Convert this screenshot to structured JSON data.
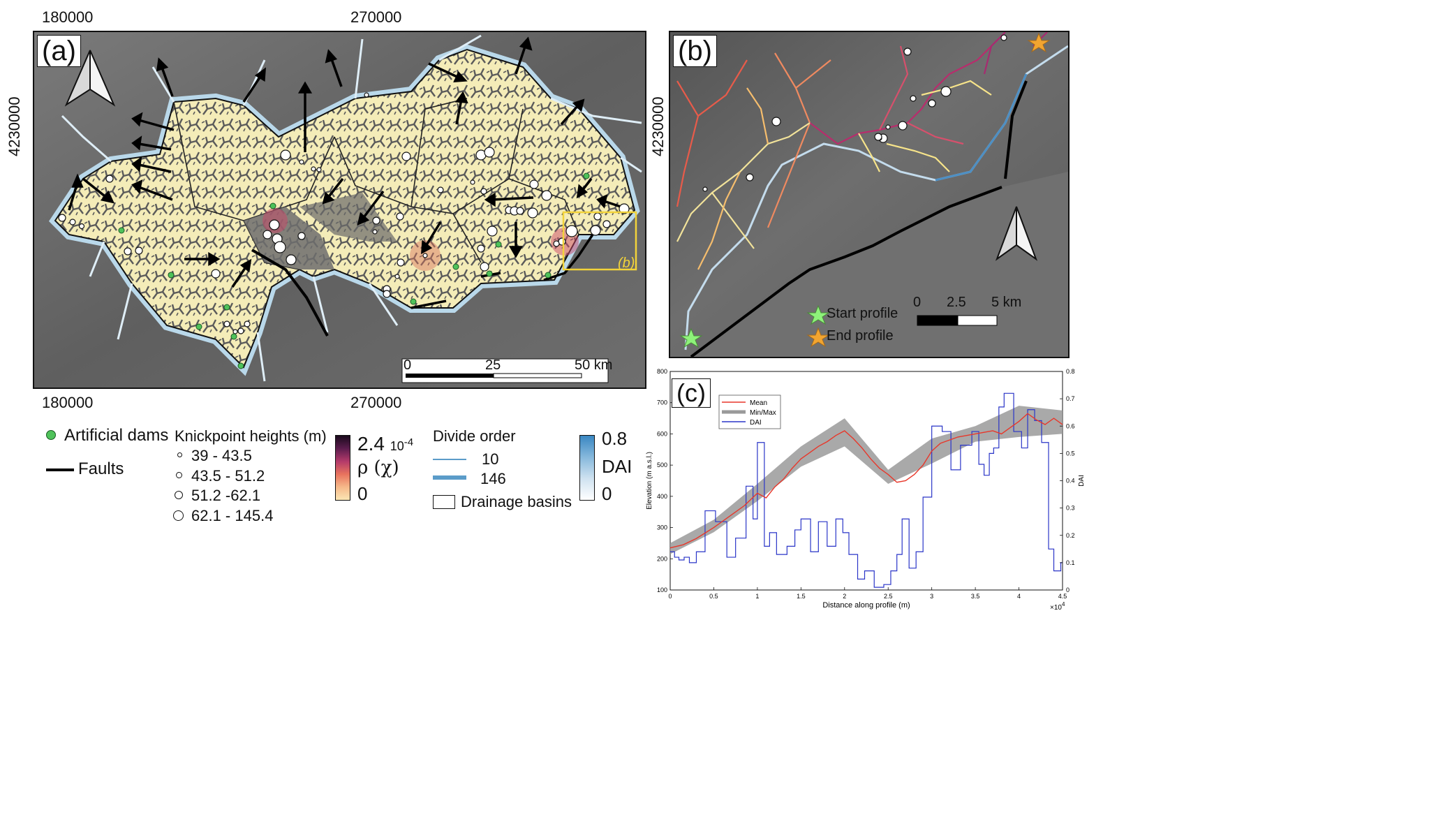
{
  "panel_a": {
    "label": "(a)",
    "x_ticks_top": [
      "180000",
      "270000"
    ],
    "x_ticks_bottom": [
      "180000",
      "270000"
    ],
    "y_tick": "4230000",
    "scale_bar": {
      "labels": [
        "0",
        "25",
        "50 km"
      ]
    },
    "inset_label": "(b)"
  },
  "panel_b": {
    "label": "(b)",
    "y_tick": "4230000",
    "scale_bar": {
      "labels": [
        "0",
        "2.5",
        "5 km"
      ]
    },
    "legend": {
      "start": "Start profile",
      "end": "End profile"
    },
    "colors": {
      "start": "#8ef27a",
      "end": "#f2a530"
    }
  },
  "panel_c": {
    "label": "(c)",
    "legend": {
      "mean": "Mean",
      "minmax": "Min/Max",
      "dai": "DAI"
    },
    "xlabel": "Distance along profile (m)",
    "ylabel_left": "Elevation (m a.s.l.)",
    "ylabel_right": "DAI",
    "x_exponent": "×10",
    "x_exponent_power": "4",
    "colors": {
      "mean": "#e8372a",
      "minmax": "#9a9a9a",
      "dai": "#2a35c8"
    }
  },
  "legend": {
    "dams": "Artificial dams",
    "faults": "Faults",
    "knick_title": "Knickpoint heights (m)",
    "knick_classes": [
      "39 - 43.5",
      "43.5 - 51.2",
      "51.2 -62.1",
      "62.1 - 145.4"
    ],
    "rho_max": "2.4",
    "rho_exp": "10",
    "rho_exp_power": "-4",
    "rho_label": "ρ (χ)",
    "rho_min": "0",
    "divide_title": "Divide order",
    "divide_min": "10",
    "divide_max": "146",
    "basins": "Drainage basins",
    "dai_max": "0.8",
    "dai_label": "DAI",
    "dai_min": "0",
    "colors": {
      "dam": "#4fc25a",
      "divide": "#5b9cc9"
    }
  },
  "chart_data": {
    "type": "line",
    "xlabel": "Distance along profile (m)",
    "ylabel": "Elevation (m a.s.l.)",
    "y2label": "DAI",
    "xlim": [
      0,
      45000
    ],
    "ylim": [
      100,
      800
    ],
    "y2lim": [
      0,
      0.8
    ],
    "x_ticks": [
      "0",
      "0.5",
      "1",
      "1.5",
      "2",
      "2.5",
      "3",
      "3.5",
      "4",
      "4.5"
    ],
    "y_ticks": [
      "100",
      "200",
      "300",
      "400",
      "500",
      "600",
      "700",
      "800"
    ],
    "y2_ticks": [
      "0",
      "0.1",
      "0.2",
      "0.3",
      "0.4",
      "0.5",
      "0.6",
      "0.7",
      "0.8"
    ],
    "series": [
      {
        "name": "Mean",
        "x": [
          0,
          1500,
          3000,
          5000,
          7000,
          8500,
          10000,
          11000,
          12000,
          13000,
          14000,
          15000,
          16000,
          17000,
          18000,
          19000,
          20000,
          21000,
          22000,
          23000,
          24000,
          25000,
          26000,
          27000,
          28000,
          29000,
          30000,
          31000,
          32000,
          33000,
          34000,
          35000,
          36000,
          37000,
          38000,
          39000,
          40000,
          41000,
          42000,
          43000,
          44000,
          45000
        ],
        "y": [
          235,
          245,
          265,
          300,
          340,
          370,
          410,
          395,
          430,
          455,
          490,
          520,
          540,
          560,
          575,
          595,
          610,
          585,
          555,
          520,
          490,
          470,
          445,
          450,
          470,
          500,
          545,
          570,
          580,
          590,
          595,
          600,
          605,
          610,
          600,
          620,
          640,
          665,
          645,
          630,
          650,
          630
        ]
      },
      {
        "name": "Min/Max",
        "x": [
          0,
          5000,
          10000,
          15000,
          20000,
          25000,
          30000,
          35000,
          40000,
          45000
        ],
        "ymin": [
          215,
          285,
          385,
          495,
          560,
          440,
          505,
          575,
          590,
          600
        ],
        "ymax": [
          250,
          325,
          440,
          560,
          650,
          485,
          585,
          625,
          690,
          675
        ]
      },
      {
        "name": "DAI",
        "x": [
          0,
          500,
          1000,
          1600,
          2200,
          3000,
          4000,
          5200,
          6500,
          7500,
          8700,
          9500,
          10000,
          10800,
          11400,
          12200,
          13400,
          14300,
          15000,
          16100,
          17000,
          18000,
          19000,
          19800,
          20500,
          21500,
          22300,
          23400,
          24500,
          25300,
          26000,
          26600,
          27400,
          28200,
          29000,
          30000,
          31200,
          32200,
          33300,
          34000,
          34600,
          35400,
          36000,
          36600,
          37100,
          37700,
          38300,
          39400,
          40300,
          41000,
          41800,
          42600,
          43400,
          44000,
          44800
        ],
        "y": [
          0.14,
          0.12,
          0.11,
          0.12,
          0.1,
          0.14,
          0.29,
          0.25,
          0.12,
          0.19,
          0.38,
          0.26,
          0.54,
          0.16,
          0.21,
          0.13,
          0.16,
          0.22,
          0.26,
          0.14,
          0.25,
          0.16,
          0.26,
          0.21,
          0.13,
          0.04,
          0.07,
          0.01,
          0.02,
          0.07,
          0.13,
          0.26,
          0.08,
          0.14,
          0.34,
          0.6,
          0.58,
          0.44,
          0.53,
          0.53,
          0.58,
          0.46,
          0.42,
          0.5,
          0.52,
          0.67,
          0.72,
          0.58,
          0.52,
          0.66,
          0.62,
          0.54,
          0.15,
          0.07,
          0.1
        ]
      }
    ]
  }
}
